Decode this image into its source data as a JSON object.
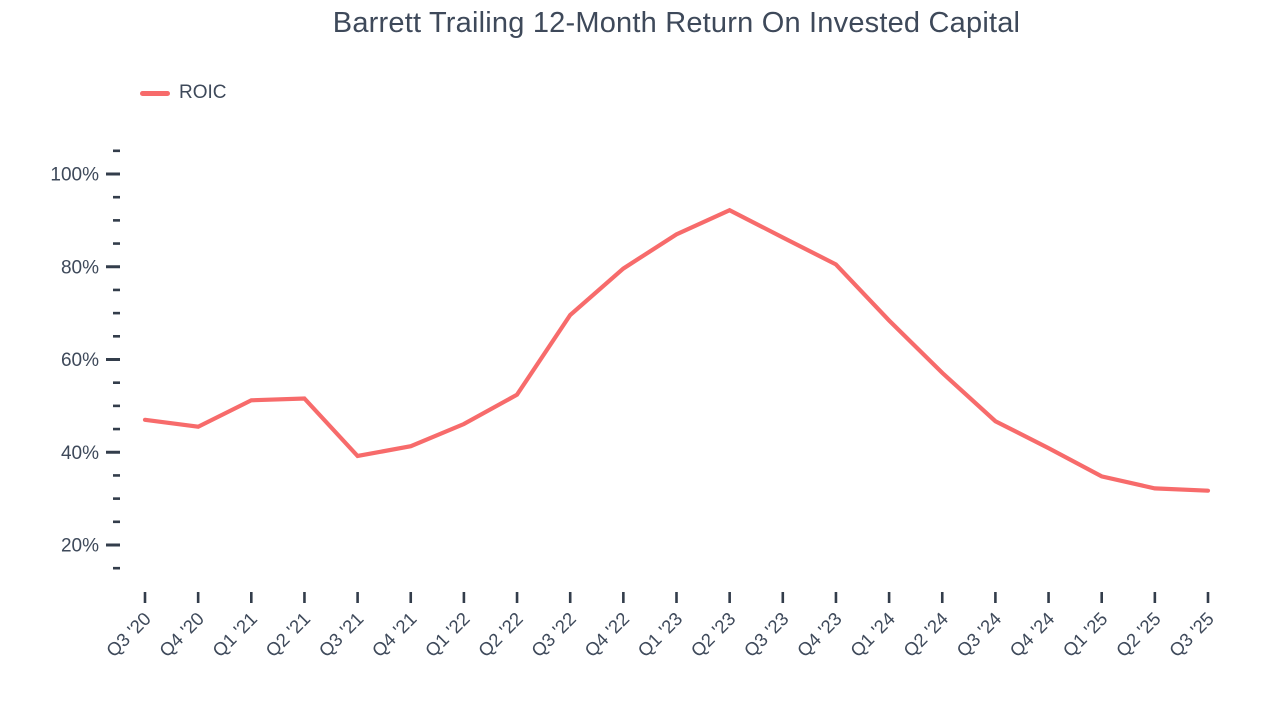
{
  "title": "Barrett Trailing 12-Month Return On Invested Capital",
  "legend": {
    "items": [
      {
        "label": "ROIC",
        "color": "#F76B6B"
      }
    ]
  },
  "colors": {
    "series_line": "#F76B6B",
    "text": "#3E495A",
    "tick": "#333D4B",
    "background": "#FFFFFF"
  },
  "chart_data": {
    "type": "line",
    "title": "Barrett Trailing 12-Month Return On Invested Capital",
    "categories": [
      "Q3 '20",
      "Q4 '20",
      "Q1 '21",
      "Q2 '21",
      "Q3 '21",
      "Q4 '21",
      "Q1 '22",
      "Q2 '22",
      "Q3 '22",
      "Q4 '22",
      "Q1 '23",
      "Q2 '23",
      "Q3 '23",
      "Q4 '23",
      "Q1 '24",
      "Q2 '24",
      "Q3 '24",
      "Q4 '24",
      "Q1 '25",
      "Q2 '25",
      "Q3 '25"
    ],
    "series": [
      {
        "name": "ROIC",
        "color": "#F76B6B",
        "values": [
          47.0,
          45.5,
          51.2,
          51.6,
          39.2,
          41.3,
          46.1,
          52.4,
          69.6,
          79.6,
          87.0,
          92.2,
          86.3,
          80.5,
          68.4,
          57.1,
          46.7,
          40.9,
          34.8,
          32.2,
          31.7
        ]
      }
    ],
    "unit": "%",
    "ylabel": "",
    "xlabel": "",
    "y_axis": {
      "major_ticks": [
        20,
        40,
        60,
        80,
        100
      ],
      "major_tick_labels": [
        "20%",
        "40%",
        "60%",
        "80%",
        "100%"
      ],
      "minor_tick_step": 5,
      "tick_range": [
        15,
        105
      ],
      "label_suffix": "%"
    },
    "x_axis": {
      "label_rotation_deg": -45
    },
    "grid": false,
    "axis_lines": false,
    "legend_position": "top-left"
  }
}
